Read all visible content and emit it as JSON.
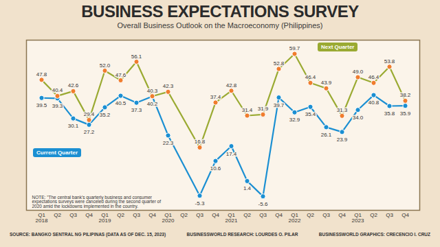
{
  "chart_data": {
    "type": "line",
    "title": "BUSINESS EXPECTATIONS SURVEY",
    "subtitle": "Overall Business Outlook on the Macroeconomy (Philippines)",
    "categories": [
      "Q1\n2018",
      "Q2",
      "Q3",
      "Q4",
      "Q1\n2019",
      "Q2",
      "Q3",
      "Q4",
      "Q1\n2020",
      "Q2",
      "Q3",
      "Q4",
      "Q1\n2021",
      "Q2",
      "Q3",
      "Q4",
      "Q1\n2022",
      "Q2",
      "Q3",
      "Q4",
      "Q1\n2023",
      "Q2",
      "Q3",
      "Q4"
    ],
    "series": [
      {
        "name": "Current Quarter",
        "color": "#1b8fd2",
        "marker": "circle",
        "values": [
          39.5,
          39.3,
          30.1,
          27.2,
          35.2,
          40.5,
          37.3,
          40.2,
          22.3,
          null,
          -5.3,
          10.6,
          17.4,
          1.4,
          -5.6,
          39.7,
          32.9,
          35.4,
          26.1,
          23.9,
          34.0,
          40.8,
          35.8,
          35.9
        ],
        "value_labels": [
          "39.5",
          "39.3",
          "30.1",
          "27.2",
          "35.2",
          "40.5",
          "37.3",
          "40.2",
          "22.3",
          null,
          "-5.3",
          "10.6",
          "17.4",
          "1.4",
          "-5.6",
          "39.7",
          "32.9",
          "35.4",
          "26.1",
          "23.9",
          "34.0",
          "40.8",
          "35.8",
          "35.9"
        ]
      },
      {
        "name": "Next Quarter",
        "color": "#9aaa32",
        "marker": "circle",
        "values": [
          47.8,
          40.4,
          42.6,
          29.4,
          52.0,
          47.6,
          56.1,
          40.3,
          42.3,
          null,
          16.8,
          37.4,
          42.8,
          31.4,
          31.9,
          52.8,
          59.7,
          46.4,
          43.9,
          31.3,
          49.0,
          46.4,
          53.8,
          38.2
        ],
        "value_labels": [
          "47.8",
          "40.4",
          "42.6",
          "29.4",
          "52.0",
          "47.6",
          "56.1",
          "40.3",
          "42.3",
          null,
          "16.8",
          "37.4",
          "42.8",
          "31.4",
          "31.9",
          "52.8",
          "59.7",
          "46.4",
          "43.9",
          "31.3",
          "49.0",
          "46.4",
          "53.8",
          "38.2"
        ]
      }
    ],
    "ylim": [
      -12,
      66
    ],
    "tick_labels": "x",
    "grid": false,
    "data_labels": true,
    "annotations": [
      "NOTE: \"The central bank's quarterly business and consumer expectations surveys were canceled during the second quarter of 2020 amid the lockdowns implemented in the country."
    ],
    "source": "SOURCE: BANGKO SENTRAL NG PILIPINAS (DATA AS OF DEC. 15, 2023)",
    "credits": [
      "BUSINESSWORLD RESEARCH: LOURDES O. PILAR",
      "BUSINESSWORLD GRAPHICS: CRECENCIO I. CRUZ"
    ]
  }
}
